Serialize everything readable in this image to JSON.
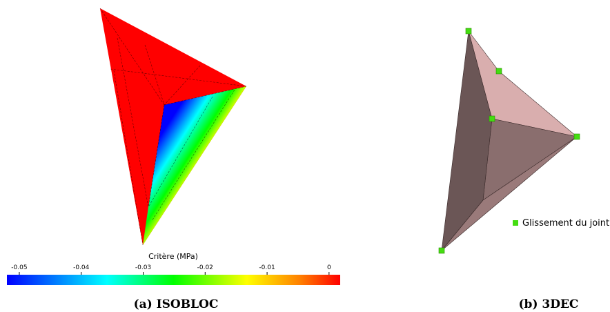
{
  "colorbar": {
    "title": "Critère (MPa)",
    "lim": [
      -0.052,
      0.0018
    ],
    "ticks": [
      -0.05,
      -0.04,
      -0.03,
      -0.02,
      -0.01,
      0
    ]
  },
  "legend": {
    "label": "Glissement du joint"
  },
  "captions": [
    "(a) ISOBLOC",
    "(b) 3DEC"
  ]
}
